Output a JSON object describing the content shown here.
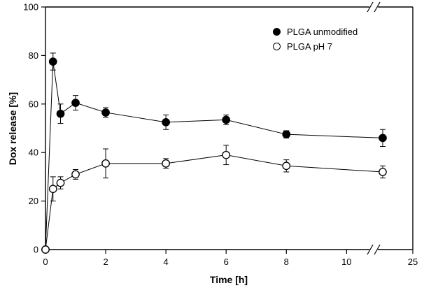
{
  "chart_data": {
    "type": "scatter",
    "title": "",
    "xlabel": "Time [h]",
    "ylabel": "Dox release [%]",
    "grid": false,
    "legend_position": "top-right-inside",
    "colors": {
      "axis": "#000000",
      "marker_filled": "#000000",
      "marker_open_fill": "#ffffff"
    },
    "x_axis": {
      "min": 0,
      "max": 25,
      "ticks": [
        0,
        2,
        4,
        6,
        8,
        10,
        25
      ],
      "break_start": 10.9,
      "break_end": 23.7
    },
    "y_axis": {
      "min": 0,
      "max": 100,
      "ticks": [
        0,
        20,
        40,
        60,
        80,
        100
      ]
    },
    "series": [
      {
        "name": "PLGA unmodified",
        "marker": "filled-circle",
        "points": [
          {
            "x": 0,
            "y": 0,
            "err": 0
          },
          {
            "x": 0.25,
            "y": 77.5,
            "err": 3.5
          },
          {
            "x": 0.5,
            "y": 56,
            "err": 4
          },
          {
            "x": 1,
            "y": 60.5,
            "err": 3
          },
          {
            "x": 2,
            "y": 56.5,
            "err": 2
          },
          {
            "x": 4,
            "y": 52.5,
            "err": 3
          },
          {
            "x": 6,
            "y": 53.5,
            "err": 2
          },
          {
            "x": 8,
            "y": 47.5,
            "err": 1.5
          },
          {
            "x": 24,
            "y": 46,
            "err": 3.5
          }
        ]
      },
      {
        "name": "PLGA pH 7",
        "marker": "open-circle",
        "points": [
          {
            "x": 0,
            "y": 0,
            "err": 0
          },
          {
            "x": 0.25,
            "y": 25,
            "err": 5
          },
          {
            "x": 0.5,
            "y": 27.5,
            "err": 2.5
          },
          {
            "x": 1,
            "y": 31,
            "err": 2
          },
          {
            "x": 2,
            "y": 35.5,
            "err": 6
          },
          {
            "x": 4,
            "y": 35.5,
            "err": 2
          },
          {
            "x": 6,
            "y": 39,
            "err": 4
          },
          {
            "x": 8,
            "y": 34.5,
            "err": 2.5
          },
          {
            "x": 24,
            "y": 32,
            "err": 2.5
          }
        ]
      }
    ]
  }
}
